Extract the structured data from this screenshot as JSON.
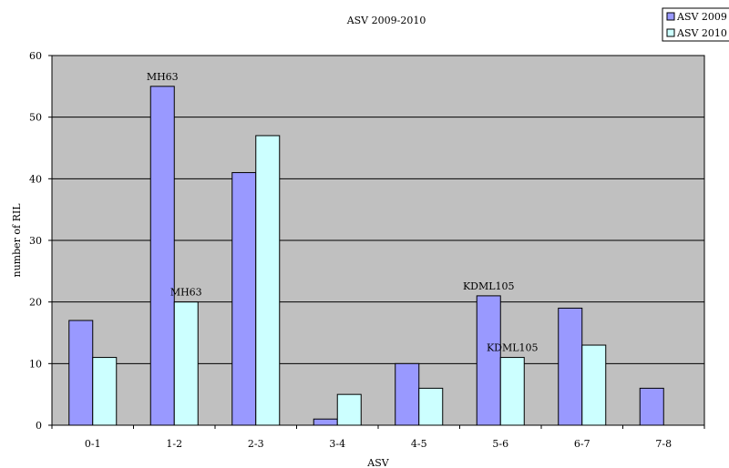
{
  "chart_data": {
    "type": "bar",
    "title": "ASV 2009-2010",
    "xlabel": "ASV",
    "ylabel": "number of RIL",
    "categories": [
      "0-1",
      "1-2",
      "2-3",
      "3-4",
      "4-5",
      "5-6",
      "6-7",
      "7-8"
    ],
    "series": [
      {
        "name": "ASV 2009",
        "values": [
          17,
          55,
          41,
          1,
          10,
          21,
          19,
          6
        ]
      },
      {
        "name": "ASV 2010",
        "values": [
          11,
          20,
          47,
          5,
          6,
          11,
          13,
          0
        ]
      }
    ],
    "ylim": [
      0,
      60
    ],
    "yticks": [
      0,
      10,
      20,
      30,
      40,
      50,
      60
    ],
    "grid": true,
    "legend_position": "top-right",
    "annotations": [
      {
        "text": "MH63",
        "series": 0,
        "category": "1-2"
      },
      {
        "text": "MH63",
        "series": 1,
        "category": "1-2"
      },
      {
        "text": "KDML105",
        "series": 0,
        "category": "5-6"
      },
      {
        "text": "KDML105",
        "series": 1,
        "category": "5-6"
      }
    ]
  },
  "colors": {
    "series_2009": "#9999ff",
    "series_2010": "#ccffff",
    "plot_background": "#c0c0c0"
  }
}
